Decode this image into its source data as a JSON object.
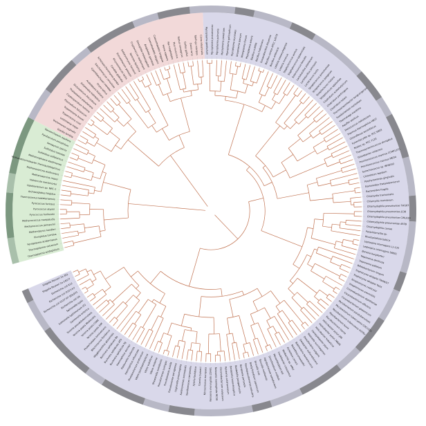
{
  "figure": {
    "colors": {
      "bacteria": "#d9d8ea",
      "eukaryota": "#f2d9d9",
      "archaea": "#d9ecd4",
      "branch": "#c0704e",
      "ring_light": "#b8b8c6",
      "ring_dark": "#88888e",
      "ring_green": "#7c9880",
      "leader": "#b0b0b0"
    },
    "leaf_names": [
      "Thermoplasma acidophilum",
      "Thermoplasma volcanium",
      "Ferroplasma acidarmanus",
      "Picrophilus torridus",
      "Methanopyrus kandleri",
      "Methanococcus jannaschii",
      "Methanococcus maripaludis",
      "Pyrococcus horikoshii",
      "Pyrococcus abyssi",
      "Pyrococcus furiosus",
      "Thermococcus kodakaraensis",
      "Archaeoglobus fulgidus",
      "Halobacterium sp. NRC-1",
      "Haloarcula marismortui",
      "Methanosarcina mazei",
      "Methanosarcina acetivorans",
      "Methanothermobacter thermautotrophicus",
      "Methanosphaera stadtmanae",
      "Sulfolobus solfataricus",
      "Sulfolobus tokodaii",
      "Aeropyrum pernix",
      "Pyrobaculum aerophilum",
      "Nanoarchaeum equitans",
      "Giardia lamblia",
      "Trichomonas vaginalis",
      "Leishmania major",
      "Trypanosoma cruzi",
      "Trypanosoma brucei",
      "Plasmodium falciparum",
      "Cryptosporidium hominis",
      "Thalassiosira pseudonana",
      "Dictyostelium discoideum",
      "Entamoeba histolytica",
      "Arabidopsis thaliana",
      "Oryza sativa",
      "Cyanidioschyzon merolae",
      "Saccharomyces cerevisiae",
      "Schizosaccharomyces pombe",
      "Candida glabrata",
      "Kluyveromyces lactis",
      "Eremothecium gossypii",
      "Debaryomyces hansenii",
      "Yarrowia lipolytica",
      "Cryptococcus neoformans",
      "Drosophila melanogaster",
      "Anopheles gambiae",
      "Caenorhabditis elegans",
      "Caenorhabditis briggsae",
      "Homo sapiens",
      "Pan troglodytes",
      "Mus musculus",
      "Rattus norvegicus",
      "Gallus gallus",
      "Danio rerio",
      "Takifugu rubripes",
      "Ciona intestinalis",
      "Mycoplasma genitalium",
      "Mycoplasma pneumoniae",
      "Mycoplasma pulmonis",
      "Mycoplasma penetrans",
      "Mycoplasma gallisepticum",
      "Mycoplasma mycoides",
      "Ureaplasma parvum",
      "Mesoplasma florum",
      "Phytoplasma asteris",
      "Bacillus subtilis",
      "Bacillus halodurans",
      "Oceanobacillus iheyensis",
      "Bacillus cereus ATCC 14579",
      "Bacillus anthracis",
      "Listeria monocytogenes",
      "Listeria innocua",
      "Staphylococcus aureus",
      "Staphylococcus epidermidis",
      "Enterococcus faecalis",
      "Lactobacillus plantarum",
      "Lactobacillus johnsonii",
      "Lactococcus lactis",
      "Streptococcus pneumoniae",
      "Streptococcus pyogenes",
      "Streptococcus mutans",
      "Streptococcus agalactiae",
      "Clostridium acetobutylicum",
      "Clostridium perfringens",
      "Clostridium tetani",
      "Thermoanaerobacter tengcongensis",
      "Fusobacterium nucleatum",
      "Thermotoga maritima",
      "Aquifex aeolicus",
      "Deinococcus radiodurans",
      "Thermus thermophilus HB27",
      "Chloroflexus aurantiacus",
      "Synechocystis sp. PCC 6803",
      "Nostoc sp. PCC 7120",
      "Thermosynechococcus elongatus",
      "Gloeobacter violaceus",
      "Prochlorococcus marinus CCMP1375",
      "Prochlorococcus marinus MED4",
      "Synechococcus sp. WH8102",
      "Chlorobium tepidum",
      "Porphyromonas gingivalis",
      "Bacteroides thetaiotaomicron",
      "Bacteroides fragilis",
      "Chlamydia trachomatis",
      "Chlamydia muridarum",
      "Chlamydophila pneumoniae TW183",
      "Chlamydophila pneumoniae J138",
      "Chlamydophila pneumoniae CWL029",
      "Chlamydophila pneumoniae AR39",
      "Chlamydophila caviae",
      "Parachlamydia sp.",
      "Rhodopirellula baltica",
      "Leptospira interrogans L1-130",
      "Leptospira interrogans 56601",
      "Borrelia burgdorferi",
      "Treponema denticola",
      "Treponema pallidum",
      "Bifidobacterium longum",
      "Tropheryma whipplei TW08/27",
      "Tropheryma whipplei Twist",
      "Streptomyces coelicolor",
      "Streptomyces avermitilis",
      "Corynebacterium diphtheriae",
      "Corynebacterium efficiens",
      "Corynebacterium glutamicum",
      "Mycobacterium paratuberculosis",
      "Mycobacterium tuberculosis CDC1551",
      "Mycobacterium tuberculosis H37Rv",
      "Mycobacterium bovis",
      "Mycobacterium leprae",
      "Helicobacter pylori J99",
      "Helicobacter pylori 26695",
      "Helicobacter hepaticus",
      "Campylobacter jejuni",
      "Wolinella succinogenes",
      "Desulfovibrio vulgaris",
      "Geobacter sulfurreducens",
      "Bdellovibrio bacteriovorus",
      "Rickettsia prowazekii",
      "Rickettsia conorii",
      "Wolbachia sp. wMel",
      "Caulobacter crescentus",
      "Mesorhizobium loti",
      "Sinorhizobium meliloti",
      "Agrobacterium tumefaciens",
      "Brucella melitensis",
      "Brucella suis",
      "Bradyrhizobium japonicum",
      "Rhodopseudomonas palustris",
      "Bordetella pertussis",
      "Bordetella parapertussis",
      "Bordetella bronchiseptica",
      "Ralstonia solanacearum",
      "Chromobacterium violaceum",
      "Neisseria meningitidis MC58",
      "Neisseria meningitidis Z2491",
      "Nitrosomonas europaea",
      "Coxiella burnetii",
      "Xylella fastidiosa",
      "Xanthomonas campestris",
      "Xanthomonas axonopodis",
      "Legionella pneumophila",
      "Pseudomonas aeruginosa",
      "Pseudomonas putida",
      "Pseudomonas syringae",
      "Shewanella oneidensis",
      "Vibrio cholerae",
      "Vibrio vulnificus",
      "Vibrio parahaemolyticus",
      "Photobacterium profundum",
      "Haemophilus influenzae",
      "Pasteurella multocida",
      "Haemophilus ducreyi",
      "Buchnera aphidicola Sg",
      "Buchnera aphidicola APS",
      "Buchnera aphidicola Bp",
      "Wigglesworthia glossinidia",
      "Blochmannia floridanus",
      "Photorhabdus luminescens",
      "Yersinia pestis KIM",
      "Yersinia pestis CO92",
      "Yersinia pestis Medievalis",
      "Yersinia pseudotuberculosis",
      "Salmonella enterica",
      "Salmonella typhimurium LT2",
      "Salmonella typhi",
      "Escherichia coli O6",
      "Escherichia coli O157:H7 EDL933",
      "Escherichia coli O157:H7",
      "Escherichia coli K12",
      "Shigella flexneri 2a 2457T",
      "Shigella flexneri 2a 301"
    ]
  }
}
